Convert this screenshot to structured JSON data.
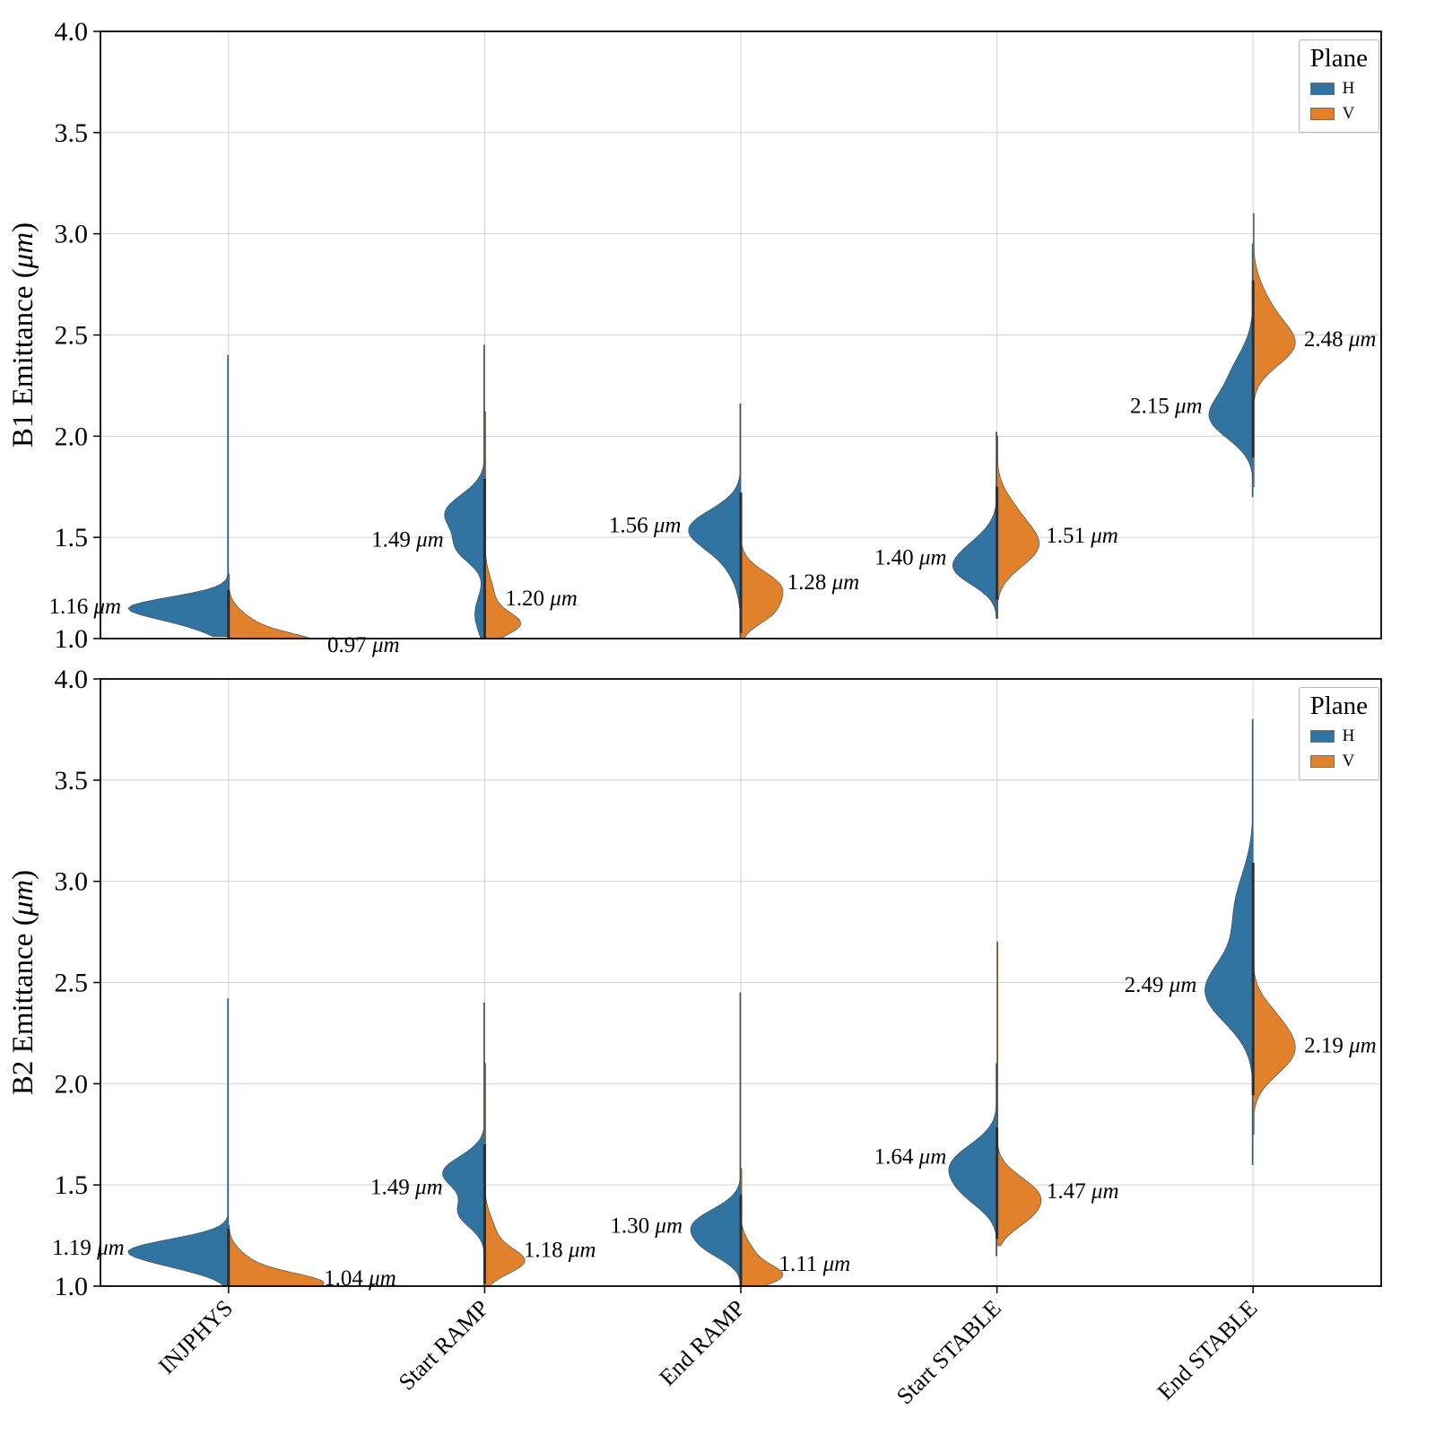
{
  "colors": {
    "H": "#3274a1",
    "V": "#e1812c",
    "grid": "#d2d2d2",
    "axis": "#000000",
    "inner_line": "#2e2e2e"
  },
  "unit": "μm",
  "legend": {
    "title": "Plane",
    "entries": [
      {
        "label": "H"
      },
      {
        "label": "V"
      }
    ]
  },
  "chart_data": {
    "type": "violin",
    "categories": [
      "INJPHYS",
      "Start RAMP",
      "End RAMP",
      "Start STABLE",
      "End STABLE"
    ],
    "panels": [
      {
        "id": "B1",
        "ylabel": "B1 Emittance",
        "ylim": [
          1.0,
          4.0
        ],
        "yticks": [
          1.0,
          1.5,
          2.0,
          2.5,
          3.0,
          3.5,
          4.0
        ],
        "series": [
          {
            "name": "H",
            "side": "left",
            "violins": [
              {
                "category": "INJPHYS",
                "mean": 1.16,
                "label": "1.16",
                "support": [
                  1.01,
                  2.4
                ],
                "wfrac": 1.0,
                "components": [
                  [
                    1.16,
                    0.05,
                    1.0
                  ],
                  [
                    1.09,
                    0.06,
                    0.45
                  ]
                ]
              },
              {
                "category": "Start RAMP",
                "mean": 1.49,
                "label": "1.49",
                "support": [
                  1.0,
                  2.45
                ],
                "wfrac": 0.4,
                "components": [
                  [
                    1.62,
                    0.09,
                    1.0
                  ],
                  [
                    1.44,
                    0.07,
                    0.6
                  ],
                  [
                    1.12,
                    0.09,
                    0.25
                  ]
                ]
              },
              {
                "category": "End RAMP",
                "mean": 1.56,
                "label": "1.56",
                "support": [
                  1.0,
                  2.16
                ],
                "wfrac": 0.52,
                "components": [
                  [
                    1.55,
                    0.09,
                    1.0
                  ],
                  [
                    1.45,
                    0.13,
                    0.45
                  ]
                ]
              },
              {
                "category": "Start STABLE",
                "mean": 1.4,
                "label": "1.40",
                "support": [
                  1.1,
                  2.02
                ],
                "wfrac": 0.44,
                "components": [
                  [
                    1.4,
                    0.1,
                    1.0
                  ],
                  [
                    1.32,
                    0.07,
                    0.5
                  ]
                ]
              },
              {
                "category": "End STABLE",
                "mean": 2.15,
                "label": "2.15",
                "support": [
                  1.7,
                  2.95
                ],
                "wfrac": 0.44,
                "components": [
                  [
                    2.08,
                    0.1,
                    1.0
                  ],
                  [
                    2.28,
                    0.13,
                    0.6
                  ]
                ]
              }
            ]
          },
          {
            "name": "V",
            "side": "right",
            "violins": [
              {
                "category": "INJPHYS",
                "mean": 0.97,
                "label": "0.97",
                "support": [
                  0.93,
                  1.32
                ],
                "wfrac": 0.9,
                "components": [
                  [
                    0.97,
                    0.05,
                    1.0
                  ],
                  [
                    1.06,
                    0.07,
                    0.3
                  ]
                ]
              },
              {
                "category": "Start RAMP",
                "mean": 1.2,
                "label": "1.20",
                "support": [
                  1.0,
                  2.12
                ],
                "wfrac": 0.36,
                "components": [
                  [
                    1.07,
                    0.055,
                    1.0
                  ],
                  [
                    1.2,
                    0.1,
                    0.3
                  ]
                ]
              },
              {
                "category": "End RAMP",
                "mean": 1.28,
                "label": "1.28",
                "support": [
                  1.0,
                  1.62
                ],
                "wfrac": 0.42,
                "components": [
                  [
                    1.25,
                    0.08,
                    1.0
                  ],
                  [
                    1.12,
                    0.06,
                    0.55
                  ]
                ]
              },
              {
                "category": "Start STABLE",
                "mean": 1.51,
                "label": "1.51",
                "support": [
                  1.1,
                  2.0
                ],
                "wfrac": 0.42,
                "components": [
                  [
                    1.45,
                    0.1,
                    1.0
                  ],
                  [
                    1.62,
                    0.1,
                    0.4
                  ]
                ]
              },
              {
                "category": "End STABLE",
                "mean": 2.48,
                "label": "2.48",
                "support": [
                  1.75,
                  3.1
                ],
                "wfrac": 0.42,
                "components": [
                  [
                    2.44,
                    0.1,
                    1.0
                  ],
                  [
                    2.6,
                    0.13,
                    0.5
                  ]
                ]
              }
            ]
          }
        ]
      },
      {
        "id": "B2",
        "ylabel": "B2 Emittance",
        "ylim": [
          1.0,
          4.0
        ],
        "yticks": [
          1.0,
          1.5,
          2.0,
          2.5,
          3.0,
          3.5,
          4.0
        ],
        "series": [
          {
            "name": "H",
            "side": "left",
            "violins": [
              {
                "category": "INJPHYS",
                "mean": 1.19,
                "label": "1.19",
                "support": [
                  1.0,
                  2.42
                ],
                "wfrac": 1.0,
                "components": [
                  [
                    1.18,
                    0.055,
                    1.0
                  ],
                  [
                    1.1,
                    0.05,
                    0.35
                  ]
                ]
              },
              {
                "category": "Start RAMP",
                "mean": 1.49,
                "label": "1.49",
                "support": [
                  1.0,
                  2.4
                ],
                "wfrac": 0.42,
                "components": [
                  [
                    1.56,
                    0.08,
                    1.0
                  ],
                  [
                    1.36,
                    0.07,
                    0.6
                  ]
                ]
              },
              {
                "category": "End RAMP",
                "mean": 1.3,
                "label": "1.30",
                "support": [
                  1.0,
                  2.45
                ],
                "wfrac": 0.5,
                "components": [
                  [
                    1.3,
                    0.08,
                    1.0
                  ],
                  [
                    1.18,
                    0.06,
                    0.45
                  ]
                ]
              },
              {
                "category": "Start STABLE",
                "mean": 1.64,
                "label": "1.64",
                "support": [
                  1.15,
                  2.1
                ],
                "wfrac": 0.48,
                "components": [
                  [
                    1.6,
                    0.1,
                    1.0
                  ],
                  [
                    1.45,
                    0.08,
                    0.45
                  ]
                ]
              },
              {
                "category": "End STABLE",
                "mean": 2.49,
                "label": "2.49",
                "support": [
                  1.6,
                  3.8
                ],
                "wfrac": 0.48,
                "components": [
                  [
                    2.45,
                    0.15,
                    1.0
                  ],
                  [
                    2.85,
                    0.18,
                    0.4
                  ]
                ]
              }
            ]
          },
          {
            "name": "V",
            "side": "right",
            "violins": [
              {
                "category": "INJPHYS",
                "mean": 1.04,
                "label": "1.04",
                "support": [
                  0.95,
                  1.3
                ],
                "wfrac": 0.95,
                "components": [
                  [
                    1.01,
                    0.05,
                    1.0
                  ],
                  [
                    1.1,
                    0.07,
                    0.25
                  ]
                ]
              },
              {
                "category": "Start RAMP",
                "mean": 1.18,
                "label": "1.18",
                "support": [
                  1.0,
                  2.1
                ],
                "wfrac": 0.4,
                "components": [
                  [
                    1.12,
                    0.06,
                    1.0
                  ],
                  [
                    1.25,
                    0.09,
                    0.3
                  ]
                ]
              },
              {
                "category": "End RAMP",
                "mean": 1.11,
                "label": "1.11",
                "support": [
                  1.0,
                  1.58
                ],
                "wfrac": 0.42,
                "components": [
                  [
                    1.05,
                    0.05,
                    1.0
                  ],
                  [
                    1.15,
                    0.07,
                    0.35
                  ]
                ]
              },
              {
                "category": "Start STABLE",
                "mean": 1.47,
                "label": "1.47",
                "support": [
                  1.2,
                  2.7
                ],
                "wfrac": 0.44,
                "components": [
                  [
                    1.45,
                    0.09,
                    1.0
                  ],
                  [
                    1.33,
                    0.07,
                    0.4
                  ]
                ]
              },
              {
                "category": "End STABLE",
                "mean": 2.19,
                "label": "2.19",
                "support": [
                  1.75,
                  2.62
                ],
                "wfrac": 0.42,
                "components": [
                  [
                    2.15,
                    0.11,
                    1.0
                  ],
                  [
                    2.32,
                    0.1,
                    0.45
                  ]
                ]
              }
            ]
          }
        ]
      }
    ]
  }
}
